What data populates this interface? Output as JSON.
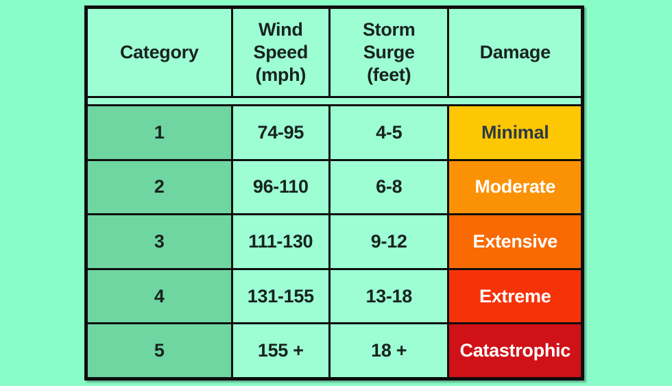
{
  "colors": {
    "page_bg": "#8afcc7",
    "cell_bg": "#9dfed4",
    "category_cell_bg": "#6fd5a1",
    "border": "#0e0e0e",
    "text": "#17231f",
    "damage_minimal": "#fdc703",
    "damage_moderate": "#fb9104",
    "damage_extensive": "#f96a02",
    "damage_extreme": "#f63208",
    "damage_catastrophic": "#d01117"
  },
  "table": {
    "headers": {
      "category": "Category",
      "wind_speed": "Wind\nSpeed\n(mph)",
      "storm_surge": "Storm\nSurge\n(feet)",
      "damage": "Damage"
    },
    "rows": [
      {
        "category": "1",
        "wind_speed": "74-95",
        "storm_surge": "4-5",
        "damage": "Minimal",
        "damage_bg": "#fdc703",
        "damage_text": "#2c3a45"
      },
      {
        "category": "2",
        "wind_speed": "96-110",
        "storm_surge": "6-8",
        "damage": "Moderate",
        "damage_bg": "#fb9104",
        "damage_text": "#ffffff"
      },
      {
        "category": "3",
        "wind_speed": "111-130",
        "storm_surge": "9-12",
        "damage": "Extensive",
        "damage_bg": "#f96a02",
        "damage_text": "#ffffff"
      },
      {
        "category": "4",
        "wind_speed": "131-155",
        "storm_surge": "13-18",
        "damage": "Extreme",
        "damage_bg": "#f63208",
        "damage_text": "#ffffff"
      },
      {
        "category": "5",
        "wind_speed": "155 +",
        "storm_surge": "18 +",
        "damage": "Catastrophic",
        "damage_bg": "#d01117",
        "damage_text": "#ffffff"
      }
    ]
  },
  "chart_data": {
    "type": "table",
    "title": "",
    "columns": [
      "Category",
      "Wind Speed (mph)",
      "Storm Surge (feet)",
      "Damage"
    ],
    "rows": [
      [
        "1",
        "74-95",
        "4-5",
        "Minimal"
      ],
      [
        "2",
        "96-110",
        "6-8",
        "Moderate"
      ],
      [
        "3",
        "111-130",
        "9-12",
        "Extensive"
      ],
      [
        "4",
        "131-155",
        "13-18",
        "Extreme"
      ],
      [
        "5",
        "155 +",
        "18 +",
        "Catastrophic"
      ]
    ],
    "notes": "Saffir-Simpson hurricane category scale; damage cells colored from gold (Minimal) through orange to dark red (Catastrophic); category column shaded green"
  }
}
